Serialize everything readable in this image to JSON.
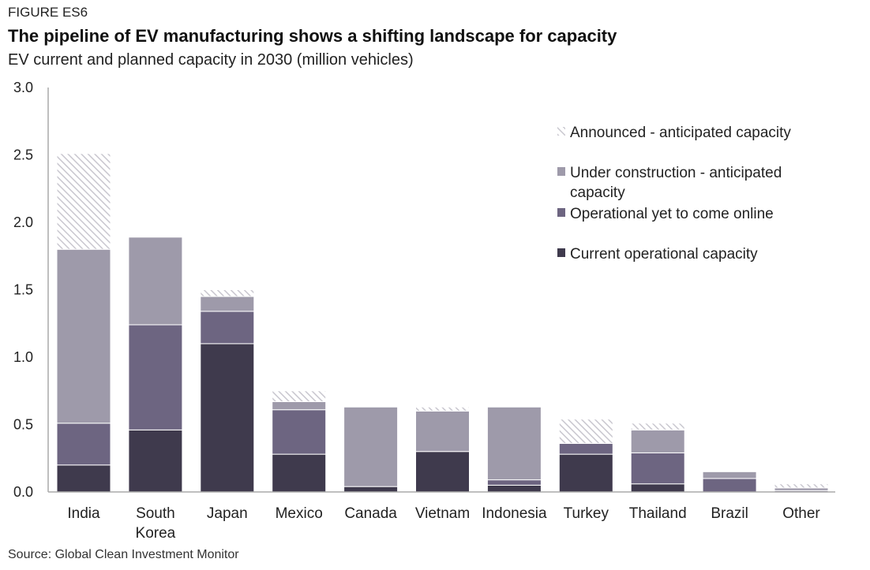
{
  "figure_label": "FIGURE ES6",
  "title": "The pipeline of EV manufacturing shows a shifting landscape for capacity",
  "subtitle": "EV current and planned capacity in 2030 (million vehicles)",
  "source": "Source: Global Clean Investment Monitor",
  "colors": {
    "current": "#3f3a4d",
    "operational_yet": "#6d6581",
    "under_construction": "#9e9aaa",
    "announced": "#c9c7cf",
    "axis": "#aaaaaa"
  },
  "chart_data": {
    "type": "bar",
    "stacked": true,
    "title": "The pipeline of EV manufacturing shows a shifting landscape for capacity",
    "ylabel": "",
    "xlabel": "",
    "ylim": [
      0,
      3.0
    ],
    "yticks": [
      "0.0",
      "0.5",
      "1.0",
      "1.5",
      "2.0",
      "2.5",
      "3.0"
    ],
    "legend_position": "top-right",
    "categories": [
      [
        "India"
      ],
      [
        "South",
        "Korea"
      ],
      [
        "Japan"
      ],
      [
        "Mexico"
      ],
      [
        "Canada"
      ],
      [
        "Vietnam"
      ],
      [
        "Indonesia"
      ],
      [
        "Turkey"
      ],
      [
        "Thailand"
      ],
      [
        "Brazil"
      ],
      [
        "Other"
      ]
    ],
    "series": [
      {
        "name": "Current operational capacity",
        "key": "current",
        "values": [
          0.2,
          0.46,
          1.1,
          0.28,
          0.04,
          0.3,
          0.05,
          0.28,
          0.06,
          0.0,
          0.0
        ]
      },
      {
        "name": "Operational yet to come online",
        "key": "operational_yet",
        "values": [
          0.31,
          0.78,
          0.24,
          0.33,
          0.0,
          0.0,
          0.04,
          0.08,
          0.23,
          0.1,
          0.01
        ]
      },
      {
        "name": "Under construction - anticipated capacity",
        "key": "under_construction",
        "values": [
          1.29,
          0.65,
          0.11,
          0.06,
          0.59,
          0.3,
          0.54,
          0.0,
          0.17,
          0.05,
          0.02
        ]
      },
      {
        "name": "Announced - anticipated capacity",
        "key": "announced",
        "values": [
          0.71,
          0.0,
          0.05,
          0.08,
          0.0,
          0.03,
          0.0,
          0.18,
          0.05,
          0.0,
          0.03
        ]
      }
    ],
    "legend": [
      {
        "key": "announced",
        "lines": [
          "Announced - anticipated capacity"
        ]
      },
      {
        "key": "under_construction",
        "lines": [
          "Under construction - anticipated",
          "capacity"
        ]
      },
      {
        "key": "operational_yet",
        "lines": [
          "Operational yet to come online"
        ]
      },
      {
        "key": "current",
        "lines": [
          "Current operational capacity"
        ]
      }
    ]
  }
}
